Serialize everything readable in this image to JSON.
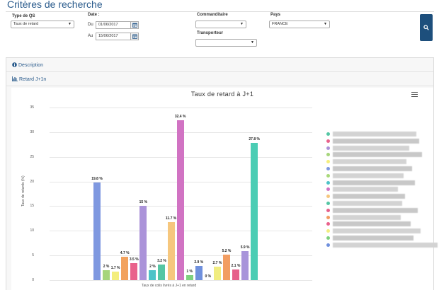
{
  "page": {
    "title": "Critères de recherche"
  },
  "filters": {
    "type_qs": {
      "label": "Type de QS",
      "value": "Taux de retard"
    },
    "date": {
      "label": "Date :",
      "from_label": "Du",
      "from_value": "01/06/2017",
      "to_label": "Au",
      "to_value": "15/06/2017"
    },
    "commanditaire": {
      "label": "Commanditaire",
      "value": ""
    },
    "transporteur": {
      "label": "Transporteur",
      "value": ""
    },
    "pays": {
      "label": "Pays",
      "value": "FRANCE"
    }
  },
  "panel": {
    "description_label": "Description",
    "retard_label": "Retard J+1n"
  },
  "chart_data": {
    "type": "bar",
    "title": "Taux de retard à J+1",
    "xlabel": "Taux de colis livrés à J+1 en retard",
    "ylabel": "Taux de retards (%)",
    "ylim": [
      0,
      35
    ],
    "yticks": [
      "0",
      "5",
      "10",
      "15",
      "20",
      "25",
      "30",
      "35"
    ],
    "grid": true,
    "bars": [
      {
        "value": 19.8,
        "label": "19.8 %",
        "color": "#7f98e0"
      },
      {
        "value": 2,
        "label": "2 %",
        "color": "#a6d57b"
      },
      {
        "value": 1.7,
        "label": "1.7 %",
        "color": "#f4ee7d"
      },
      {
        "value": 4.7,
        "label": "4.7 %",
        "color": "#f2a25e"
      },
      {
        "value": 3.5,
        "label": "3.5 %",
        "color": "#e9628c"
      },
      {
        "value": 15,
        "label": "15 %",
        "color": "#ab93d9"
      },
      {
        "value": 2,
        "label": "2 %",
        "color": "#4ec3c8"
      },
      {
        "value": 3.2,
        "label": "3.2 %",
        "color": "#54c6a4"
      },
      {
        "value": 11.7,
        "label": "11.7 %",
        "color": "#f6c77e"
      },
      {
        "value": 32.4,
        "label": "32.4 %",
        "color": "#d173c3"
      },
      {
        "value": 1,
        "label": "1 %",
        "color": "#7ed07f"
      },
      {
        "value": 2.9,
        "label": "2.9 %",
        "color": "#6f90dd"
      },
      {
        "value": 0,
        "label": "0 %",
        "color": "#a9d97b"
      },
      {
        "value": 2.7,
        "label": "2.7 %",
        "color": "#f1ed80"
      },
      {
        "value": 5.2,
        "label": "5.2 %",
        "color": "#f29d62"
      },
      {
        "value": 2.1,
        "label": "2.1 %",
        "color": "#e6608a"
      },
      {
        "value": 5.9,
        "label": "5.9 %",
        "color": "#a894da"
      },
      {
        "value": 27.8,
        "label": "27.8 %",
        "color": "#4bcdb4"
      }
    ],
    "legend_colors": [
      "#54c6a4",
      "#e9628c",
      "#ab93d9",
      "#a6d57b",
      "#f4ee7d",
      "#7f98e0",
      "#a9d97b",
      "#4ec3c8",
      "#d173c3",
      "#f6c77e",
      "#54c6a4",
      "#e6608a",
      "#f29d62",
      "#e9628c",
      "#f1ed80",
      "#7ed07f",
      "#6f90dd"
    ]
  }
}
